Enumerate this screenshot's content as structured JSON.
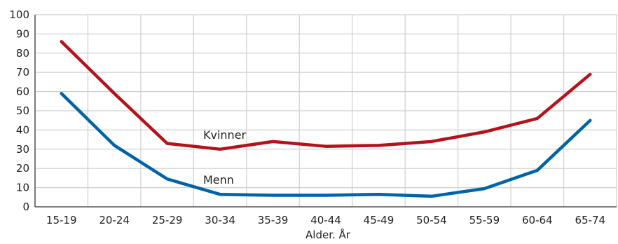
{
  "chart_data": {
    "type": "line",
    "title": "",
    "xlabel": "Alder. År",
    "ylabel": "",
    "ylim": [
      0,
      100
    ],
    "yticks": [
      0,
      10,
      20,
      30,
      40,
      50,
      60,
      70,
      80,
      90,
      100
    ],
    "categories": [
      "15-19",
      "20-24",
      "25-29",
      "30-34",
      "35-39",
      "40-44",
      "45-49",
      "50-54",
      "55-59",
      "60-64",
      "65-74"
    ],
    "grid": true,
    "series": [
      {
        "name": "Kvinner",
        "color": "#b5121b",
        "values": [
          86,
          59,
          33,
          30,
          34,
          31.5,
          32,
          34,
          39,
          46,
          69
        ]
      },
      {
        "name": "Menn",
        "color": "#0063a6",
        "values": [
          59,
          32,
          14.5,
          6.5,
          6,
          6,
          6.5,
          5.5,
          9.5,
          19,
          45
        ]
      }
    ]
  }
}
